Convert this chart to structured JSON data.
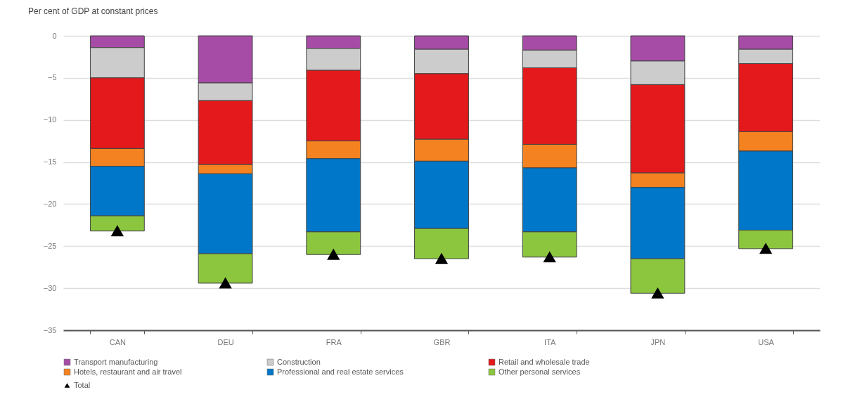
{
  "chart_data": {
    "type": "bar",
    "stacked": true,
    "ylabel": "Per cent of GDP at constant prices",
    "categories": [
      "CAN",
      "DEU",
      "FRA",
      "GBR",
      "ITA",
      "JPN",
      "USA"
    ],
    "series": [
      {
        "name": "Transport manufacturing",
        "color": "#a64ca6",
        "values": [
          -1.4,
          -5.6,
          -1.5,
          -1.6,
          -1.7,
          -3.0,
          -1.6
        ]
      },
      {
        "name": "Construction",
        "color": "#cccccc",
        "values": [
          -3.6,
          -2.1,
          -2.6,
          -2.9,
          -2.1,
          -2.8,
          -1.7
        ]
      },
      {
        "name": "Retail and wholesale trade",
        "color": "#e3191c",
        "values": [
          -8.4,
          -7.6,
          -8.4,
          -7.8,
          -9.1,
          -10.5,
          -8.1
        ]
      },
      {
        "name": "Hotels, restaurant and air travel",
        "color": "#f58220",
        "values": [
          -2.1,
          -1.1,
          -2.1,
          -2.6,
          -2.8,
          -1.7,
          -2.3
        ]
      },
      {
        "name": "Professional and real estate services",
        "color": "#0077c8",
        "values": [
          -5.9,
          -9.5,
          -8.7,
          -8.0,
          -7.6,
          -8.5,
          -9.4
        ]
      },
      {
        "name": "Other personal services",
        "color": "#8cc63f",
        "values": [
          -1.8,
          -3.5,
          -2.7,
          -3.6,
          -3.0,
          -4.1,
          -2.2
        ]
      },
      {
        "name": "Total",
        "type": "scatter",
        "marker": "triangle",
        "color": "#000000",
        "x": [
          "CAN",
          "DEU",
          "FRA",
          "GBR",
          "ITA",
          "JPN",
          "USA"
        ],
        "values": [
          -23.2,
          -29.4,
          -26.0,
          -26.5,
          -26.3,
          -30.6,
          -25.3
        ]
      }
    ],
    "ylim": [
      -35,
      0
    ],
    "yticks": [
      -35,
      -30,
      -25,
      -20,
      -15,
      -10,
      -5,
      0
    ],
    "grid": "y",
    "legend": "bottom"
  }
}
